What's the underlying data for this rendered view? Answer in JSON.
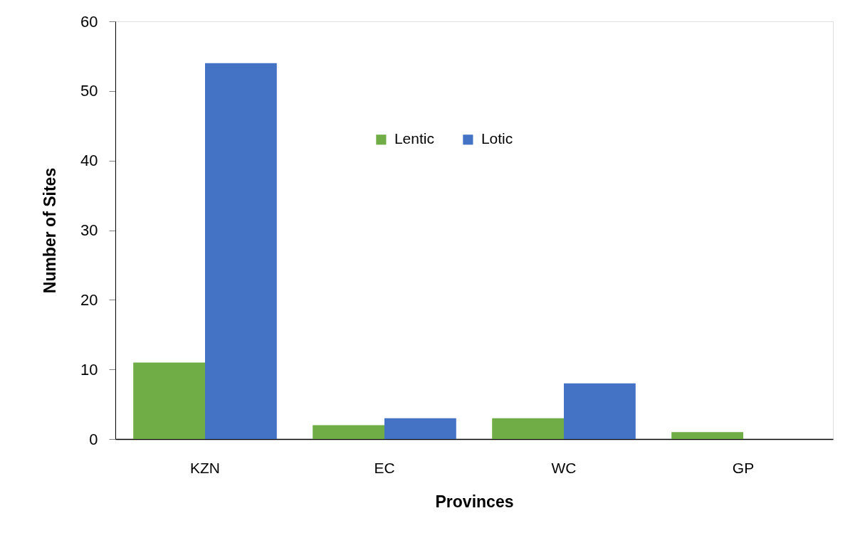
{
  "chart_data": {
    "type": "bar",
    "xlabel": "Provinces",
    "ylabel": "Number of Sites",
    "categories": [
      "KZN",
      "EC",
      "WC",
      "GP"
    ],
    "series": [
      {
        "name": "Lentic",
        "color": "#70ad47",
        "values": [
          11,
          2,
          3,
          1
        ]
      },
      {
        "name": "Lotic",
        "color": "#4472c4",
        "values": [
          54,
          3,
          8,
          0
        ]
      }
    ],
    "ylim": [
      0,
      60
    ],
    "yticks": [
      0,
      10,
      20,
      30,
      40,
      50,
      60
    ],
    "grid": false,
    "legend": "top"
  }
}
